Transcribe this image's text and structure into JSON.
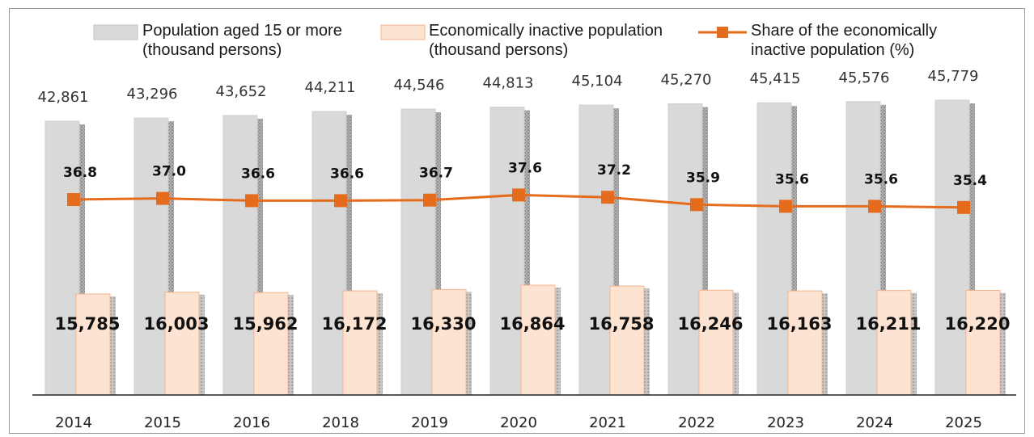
{
  "chart_data": {
    "type": "bar",
    "categories": [
      "2014",
      "2015",
      "2016",
      "2018",
      "2019",
      "2020",
      "2021",
      "2022",
      "2023",
      "2024",
      "2025"
    ],
    "series": [
      {
        "name_lines": [
          "Population aged 15 or more",
          "(thousand persons)"
        ],
        "kind": "bar",
        "color": "#d9d9d9",
        "values": [
          42861,
          43296,
          43652,
          44211,
          44546,
          44813,
          45104,
          45270,
          45415,
          45576,
          45779
        ],
        "labels": [
          "42,861",
          "43,296",
          "43,652",
          "44,211",
          "44,546",
          "44,813",
          "45,104",
          "45,270",
          "45,415",
          "45,576",
          "45,779"
        ]
      },
      {
        "name_lines": [
          "Economically inactive population",
          "(thousand persons)"
        ],
        "kind": "bar",
        "color": "#fde3d2",
        "values": [
          15785,
          16003,
          15962,
          16172,
          16330,
          16864,
          16758,
          16246,
          16163,
          16211,
          16220
        ],
        "labels": [
          "15,785",
          "16,003",
          "15,962",
          "16,172",
          "16,330",
          "16,864",
          "16,758",
          "16,246",
          "16,163",
          "16,211",
          "16,220"
        ]
      },
      {
        "name_lines": [
          "Share of the economically",
          "inactive population (%)"
        ],
        "kind": "line",
        "color": "#e46c1c",
        "values": [
          36.8,
          37.0,
          36.6,
          36.6,
          36.7,
          37.6,
          37.2,
          35.9,
          35.6,
          35.6,
          35.4
        ],
        "labels": [
          "36.8",
          "37.0",
          "36.6",
          "36.6",
          "36.7",
          "37.6",
          "37.2",
          "35.9",
          "35.6",
          "35.6",
          "35.4"
        ]
      }
    ],
    "legend_position": "top",
    "grid": false,
    "colors": {
      "population_bar": "#d9d9d9",
      "inactive_bar": "#fde3d2",
      "inactive_bar_border": "#f2b48d",
      "share_line": "#e46c1c",
      "axis": "#222222",
      "frame": "#9a9a9a"
    }
  }
}
